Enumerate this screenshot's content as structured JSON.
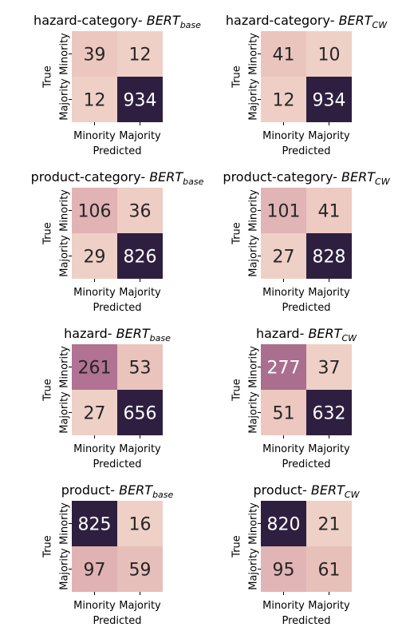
{
  "chart_data": [
    {
      "type": "heatmap",
      "title_prefix": "hazard-category- ",
      "title_model": "BERT",
      "title_subscript": "base",
      "xlabel": "Predicted",
      "ylabel": "True",
      "x_categories": [
        "Minority",
        "Majority"
      ],
      "y_categories": [
        "Minority",
        "Majority"
      ],
      "values": [
        [
          39,
          12
        ],
        [
          12,
          934
        ]
      ]
    },
    {
      "type": "heatmap",
      "title_prefix": "hazard-category- ",
      "title_model": "BERT",
      "title_subscript": "CW",
      "xlabel": "Predicted",
      "ylabel": "True",
      "x_categories": [
        "Minority",
        "Majority"
      ],
      "y_categories": [
        "Minority",
        "Majority"
      ],
      "values": [
        [
          41,
          10
        ],
        [
          12,
          934
        ]
      ]
    },
    {
      "type": "heatmap",
      "title_prefix": "product-category- ",
      "title_model": "BERT",
      "title_subscript": "base",
      "xlabel": "Predicted",
      "ylabel": "True",
      "x_categories": [
        "Minority",
        "Majority"
      ],
      "y_categories": [
        "Minority",
        "Majority"
      ],
      "values": [
        [
          106,
          36
        ],
        [
          29,
          826
        ]
      ]
    },
    {
      "type": "heatmap",
      "title_prefix": "product-category- ",
      "title_model": "BERT",
      "title_subscript": "CW",
      "xlabel": "Predicted",
      "ylabel": "True",
      "x_categories": [
        "Minority",
        "Majority"
      ],
      "y_categories": [
        "Minority",
        "Majority"
      ],
      "values": [
        [
          101,
          41
        ],
        [
          27,
          828
        ]
      ]
    },
    {
      "type": "heatmap",
      "title_prefix": "hazard- ",
      "title_model": "BERT",
      "title_subscript": "base",
      "xlabel": "Predicted",
      "ylabel": "True",
      "x_categories": [
        "Minority",
        "Majority"
      ],
      "y_categories": [
        "Minority",
        "Majority"
      ],
      "values": [
        [
          261,
          53
        ],
        [
          27,
          656
        ]
      ]
    },
    {
      "type": "heatmap",
      "title_prefix": "hazard- ",
      "title_model": "BERT",
      "title_subscript": "CW",
      "xlabel": "Predicted",
      "ylabel": "True",
      "x_categories": [
        "Minority",
        "Majority"
      ],
      "y_categories": [
        "Minority",
        "Majority"
      ],
      "values": [
        [
          277,
          37
        ],
        [
          51,
          632
        ]
      ]
    },
    {
      "type": "heatmap",
      "title_prefix": "product- ",
      "title_model": "BERT",
      "title_subscript": "base",
      "xlabel": "Predicted",
      "ylabel": "True",
      "x_categories": [
        "Minority",
        "Majority"
      ],
      "y_categories": [
        "Minority",
        "Majority"
      ],
      "values": [
        [
          825,
          16
        ],
        [
          97,
          59
        ]
      ]
    },
    {
      "type": "heatmap",
      "title_prefix": "product- ",
      "title_model": "BERT",
      "title_subscript": "CW",
      "xlabel": "Predicted",
      "ylabel": "True",
      "x_categories": [
        "Minority",
        "Majority"
      ],
      "y_categories": [
        "Minority",
        "Majority"
      ],
      "values": [
        [
          820,
          21
        ],
        [
          95,
          61
        ]
      ]
    }
  ],
  "colors": {
    "scale": [
      "#efd0c6",
      "#e8c0ba",
      "#c07c9c",
      "#2e1f40"
    ],
    "text_light": "#ffffff",
    "text_dark": "#262626"
  }
}
